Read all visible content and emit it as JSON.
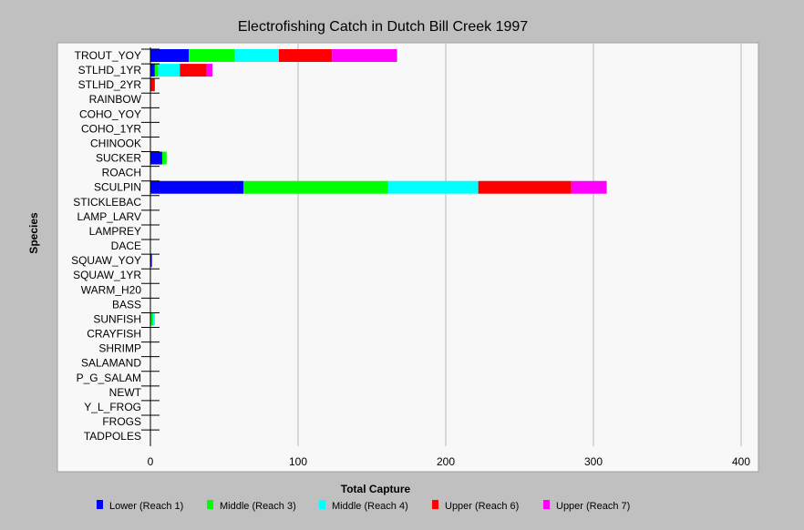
{
  "colors": {
    "background": "#c0c0c0",
    "plot_area": "#f8f8f8",
    "grid": "#b8b8b8",
    "axis": "#000000"
  },
  "chart_data": {
    "type": "bar",
    "orientation": "horizontal",
    "stacked": true,
    "title": "Electrofishing Catch in Dutch Bill Creek 1997",
    "xlabel": "Total Capture",
    "ylabel": "Species",
    "xlim": [
      0,
      400
    ],
    "x_ticks": [
      0,
      100,
      200,
      300,
      400
    ],
    "grid": "vertical",
    "legend_position": "bottom",
    "categories": [
      "TROUT_YOY",
      "STLHD_1YR",
      "STLHD_2YR",
      "RAINBOW",
      "COHO_YOY",
      "COHO_1YR",
      "CHINOOK",
      "SUCKER",
      "ROACH",
      "SCULPIN",
      "STICKLEBAC",
      "LAMP_LARV",
      "LAMPREY",
      "DACE",
      "SQUAW_YOY",
      "SQUAW_1YR",
      "WARM_H20",
      "BASS",
      "SUNFISH",
      "CRAYFISH",
      "SHRIMP",
      "SALAMAND",
      "P_G_SALAM",
      "NEWT",
      "Y_L_FROG",
      "FROGS",
      "TADPOLES"
    ],
    "series": [
      {
        "name": "Lower (Reach 1)",
        "color": "#0000ff",
        "values": [
          26,
          3,
          0,
          0,
          0,
          0,
          0,
          8,
          0,
          63,
          0,
          0,
          0,
          0,
          1,
          0,
          0,
          0,
          0,
          0,
          0,
          0,
          0,
          0,
          0,
          0,
          0
        ]
      },
      {
        "name": "Middle (Reach 3)",
        "color": "#00ff00",
        "values": [
          31,
          2,
          0,
          0,
          0,
          0,
          0,
          3,
          0,
          98,
          0,
          0,
          0,
          0,
          0,
          0,
          0,
          0,
          2,
          0,
          0,
          0,
          0,
          0,
          0,
          0,
          0
        ]
      },
      {
        "name": "Middle (Reach 4)",
        "color": "#00ffff",
        "values": [
          30,
          15,
          0,
          0,
          0,
          0,
          0,
          0,
          0,
          61,
          0,
          0,
          0,
          0,
          0,
          0,
          0,
          0,
          1,
          0,
          0,
          0,
          0,
          0,
          0,
          0,
          0
        ]
      },
      {
        "name": "Upper (Reach 6)",
        "color": "#ff0000",
        "values": [
          36,
          18,
          3,
          0,
          0,
          0,
          0,
          0,
          0,
          63,
          0,
          0,
          0,
          0,
          0,
          0,
          0,
          0,
          0,
          0,
          0,
          0,
          0,
          0,
          0,
          0,
          0
        ]
      },
      {
        "name": "Upper (Reach 7)",
        "color": "#ff00ff",
        "values": [
          44,
          4,
          0,
          0,
          0,
          0,
          0,
          0,
          0,
          24,
          0,
          0,
          0,
          0,
          0,
          0,
          0,
          0,
          0,
          0,
          0,
          0,
          0,
          0,
          0,
          0,
          0
        ]
      }
    ]
  }
}
